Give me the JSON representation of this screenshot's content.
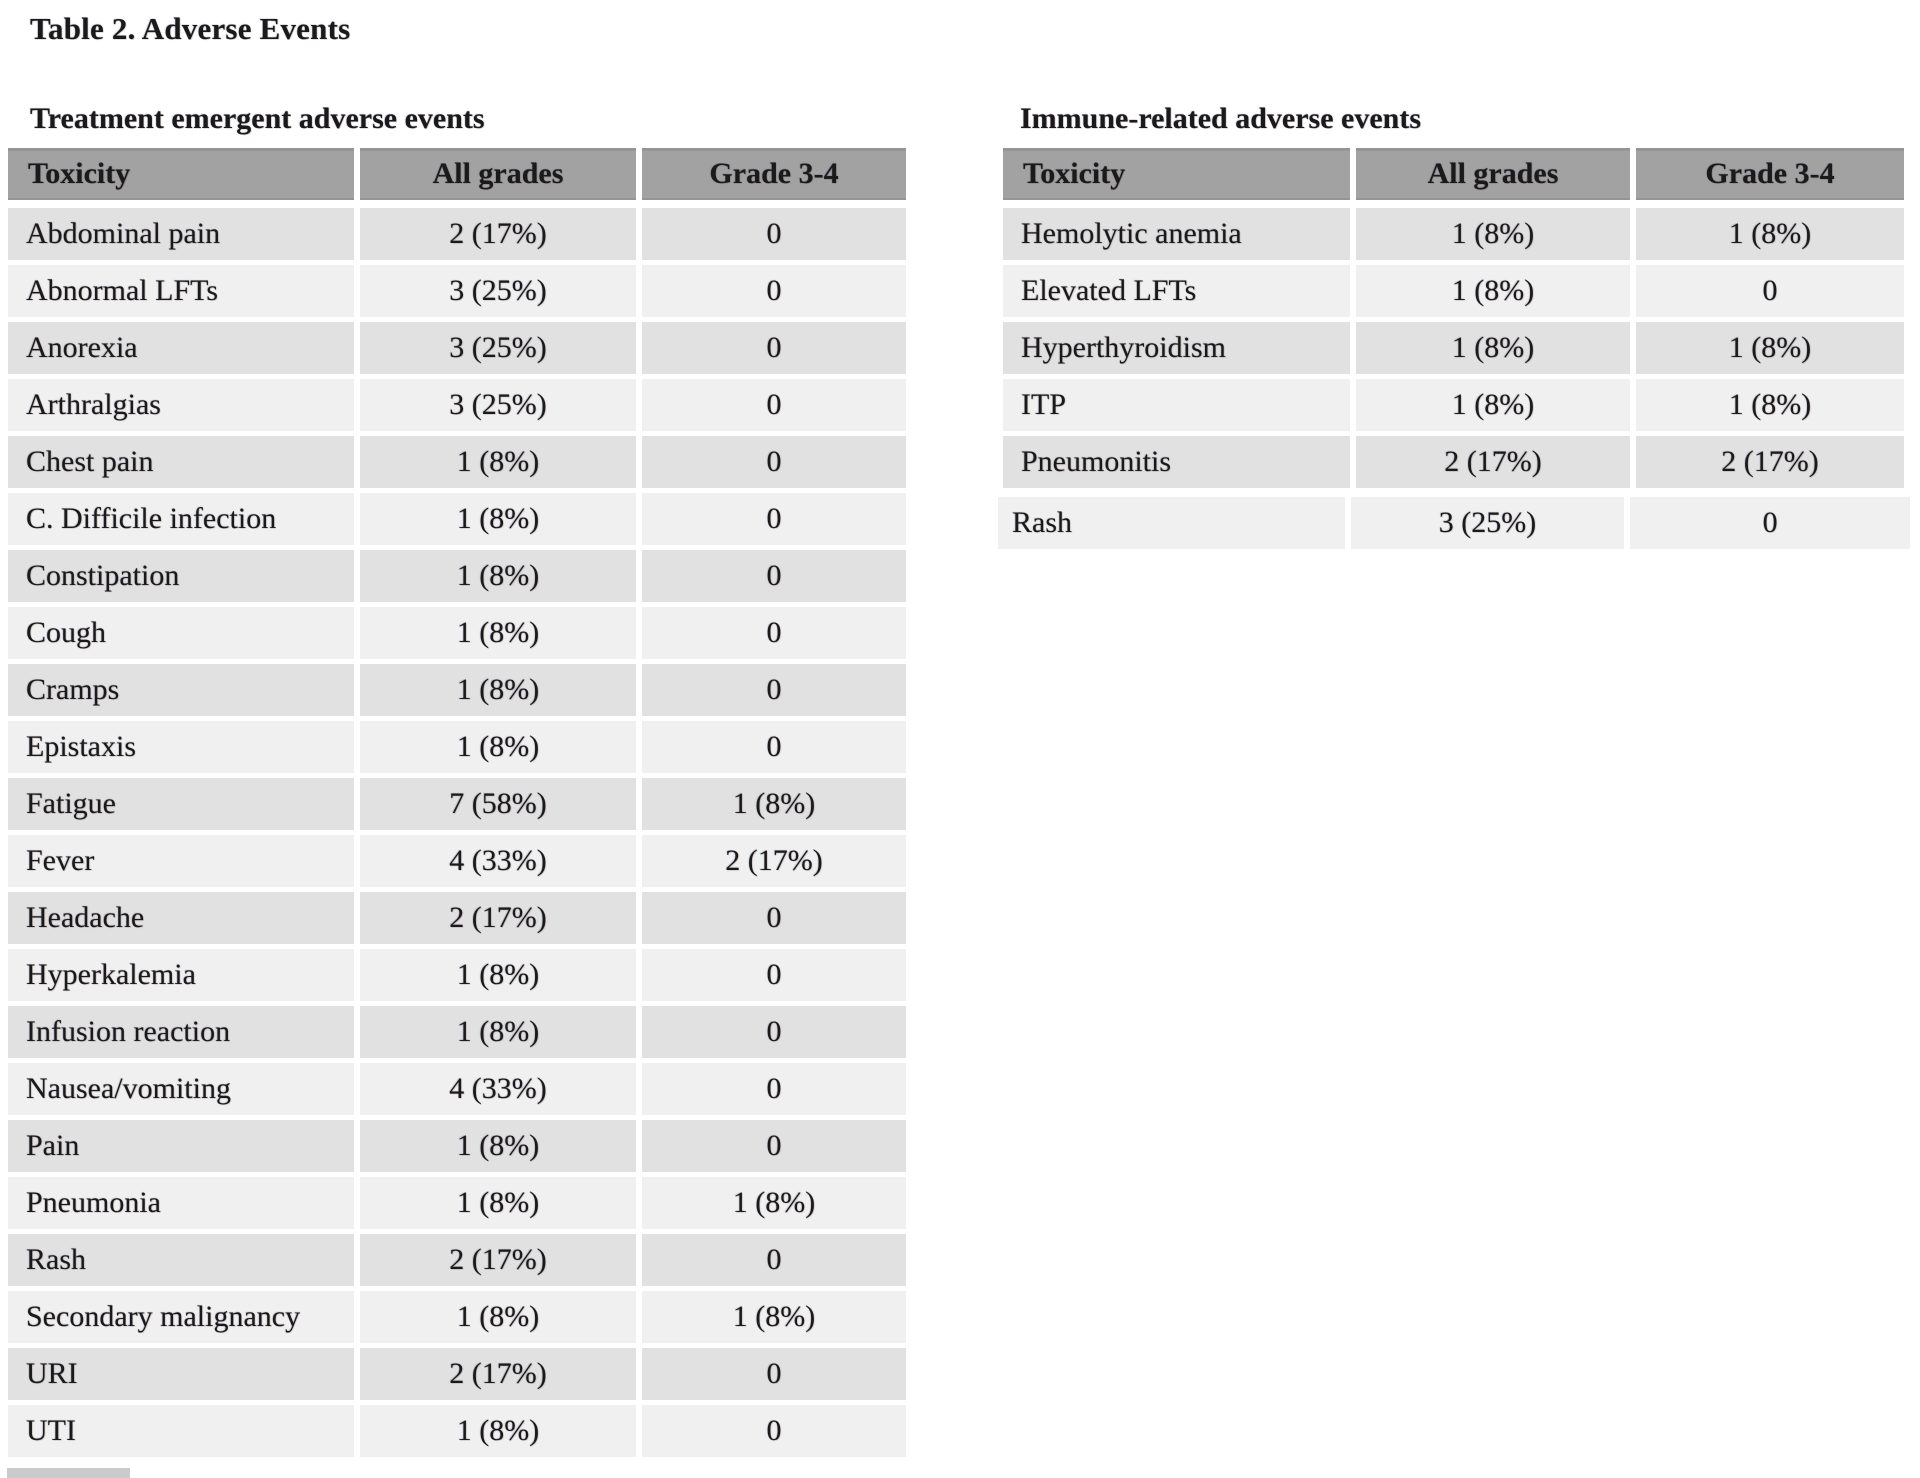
{
  "page": {
    "title": "Table 2. Adverse Events"
  },
  "colors": {
    "page_bg": "#ffffff",
    "header_bg": "#a2a2a2",
    "row_odd_bg": "#e1e1e1",
    "row_even_bg": "#f0f0f0",
    "text": "#1a1a1a",
    "cutoff_stub": "#cbcbcb"
  },
  "tables": [
    {
      "heading": "Treatment emergent adverse events",
      "columns": [
        "Toxicity",
        "All grades",
        "Grade 3-4"
      ],
      "rows": [
        [
          "Abdominal pain",
          "2 (17%)",
          "0"
        ],
        [
          "Abnormal LFTs",
          "3 (25%)",
          "0"
        ],
        [
          "Anorexia",
          "3 (25%)",
          "0"
        ],
        [
          "Arthralgias",
          "3 (25%)",
          "0"
        ],
        [
          "Chest pain",
          "1 (8%)",
          "0"
        ],
        [
          "C. Difficile infection",
          "1 (8%)",
          "0"
        ],
        [
          "Constipation",
          "1 (8%)",
          "0"
        ],
        [
          "Cough",
          "1 (8%)",
          "0"
        ],
        [
          "Cramps",
          "1 (8%)",
          "0"
        ],
        [
          "Epistaxis",
          "1 (8%)",
          "0"
        ],
        [
          "Fatigue",
          "7 (58%)",
          "1 (8%)"
        ],
        [
          "Fever",
          "4 (33%)",
          "2 (17%)"
        ],
        [
          "Headache",
          "2 (17%)",
          "0"
        ],
        [
          "Hyperkalemia",
          "1 (8%)",
          "0"
        ],
        [
          "Infusion reaction",
          "1 (8%)",
          "0"
        ],
        [
          "Nausea/vomiting",
          "4 (33%)",
          "0"
        ],
        [
          "Pain",
          "1 (8%)",
          "0"
        ],
        [
          "Pneumonia",
          "1 (8%)",
          "1 (8%)"
        ],
        [
          "Rash",
          "2 (17%)",
          "0"
        ],
        [
          "Secondary malignancy",
          "1 (8%)",
          "1 (8%)"
        ],
        [
          "URI",
          "2 (17%)",
          "0"
        ],
        [
          "UTI",
          "1 (8%)",
          "0"
        ]
      ]
    },
    {
      "heading": "Immune-related adverse events",
      "columns": [
        "Toxicity",
        "All grades",
        "Grade 3-4"
      ],
      "rows": [
        [
          "Hemolytic anemia",
          "1 (8%)",
          "1 (8%)"
        ],
        [
          "Elevated LFTs",
          "1 (8%)",
          "0"
        ],
        [
          "Hyperthyroidism",
          "1 (8%)",
          "1 (8%)"
        ],
        [
          "ITP",
          "1 (8%)",
          "1 (8%)"
        ],
        [
          "Pneumonitis",
          "2 (17%)",
          "2 (17%)"
        ],
        [
          "Rash",
          "3 (25%)",
          "0"
        ]
      ]
    }
  ]
}
